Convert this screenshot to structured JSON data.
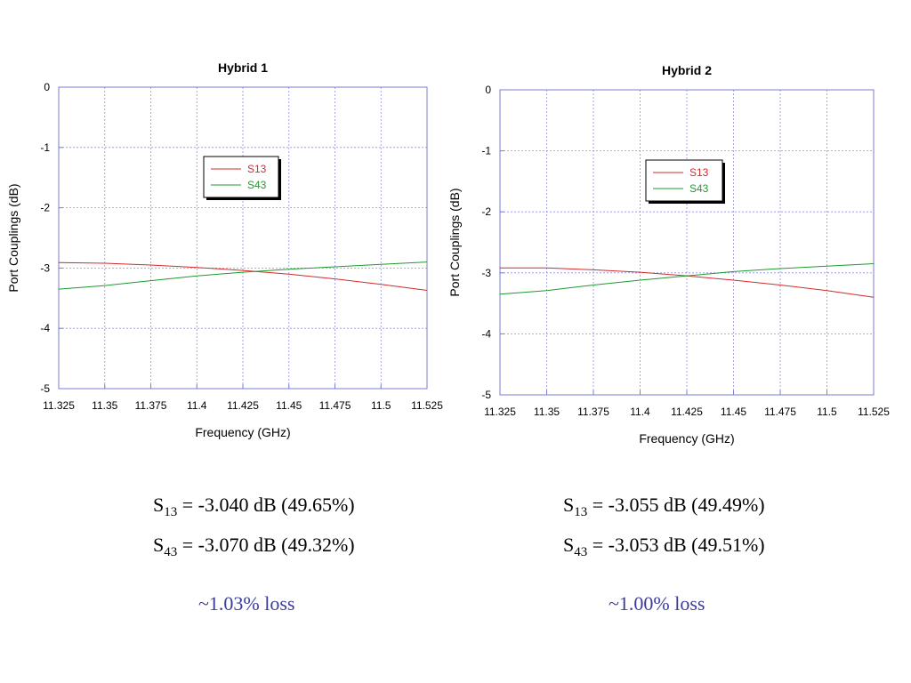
{
  "chart_data": [
    {
      "type": "line",
      "title": "Hybrid 1",
      "xlabel": "Frequency (GHz)",
      "ylabel": "Port Couplings (dB)",
      "xlim": [
        11.325,
        11.525
      ],
      "ylim": [
        -5,
        0
      ],
      "xticks": [
        "11.325",
        "11.35",
        "11.375",
        "11.4",
        "11.425",
        "11.45",
        "11.475",
        "11.5",
        "11.525"
      ],
      "yticks": [
        "0",
        "-1",
        "-2",
        "-3",
        "-4",
        "-5"
      ],
      "grid": true,
      "legend_position": "upper-center",
      "series": [
        {
          "name": "S13",
          "color": "#d22b2b",
          "x": [
            11.325,
            11.35,
            11.375,
            11.4,
            11.425,
            11.45,
            11.475,
            11.5,
            11.525
          ],
          "y": [
            -2.91,
            -2.92,
            -2.95,
            -2.99,
            -3.04,
            -3.1,
            -3.18,
            -3.27,
            -3.37
          ]
        },
        {
          "name": "S43",
          "color": "#1f9a2f",
          "x": [
            11.325,
            11.35,
            11.375,
            11.4,
            11.425,
            11.45,
            11.475,
            11.5,
            11.525
          ],
          "y": [
            -3.35,
            -3.29,
            -3.21,
            -3.13,
            -3.07,
            -3.02,
            -2.98,
            -2.94,
            -2.9
          ]
        }
      ]
    },
    {
      "type": "line",
      "title": "Hybrid 2",
      "xlabel": "Frequency (GHz)",
      "ylabel": "Port Couplings (dB)",
      "xlim": [
        11.325,
        11.525
      ],
      "ylim": [
        -5,
        0
      ],
      "xticks": [
        "11.325",
        "11.35",
        "11.375",
        "11.4",
        "11.425",
        "11.45",
        "11.475",
        "11.5",
        "11.525"
      ],
      "yticks": [
        "0",
        "-1",
        "-2",
        "-3",
        "-4",
        "-5"
      ],
      "grid": true,
      "legend_position": "upper-center",
      "series": [
        {
          "name": "S13",
          "color": "#d22b2b",
          "x": [
            11.325,
            11.35,
            11.375,
            11.4,
            11.425,
            11.45,
            11.475,
            11.5,
            11.525
          ],
          "y": [
            -2.92,
            -2.92,
            -2.95,
            -2.99,
            -3.05,
            -3.12,
            -3.2,
            -3.29,
            -3.4
          ]
        },
        {
          "name": "S43",
          "color": "#1f9a2f",
          "x": [
            11.325,
            11.35,
            11.375,
            11.4,
            11.425,
            11.45,
            11.475,
            11.5,
            11.525
          ],
          "y": [
            -3.35,
            -3.29,
            -3.2,
            -3.12,
            -3.05,
            -2.98,
            -2.93,
            -2.89,
            -2.85
          ]
        }
      ]
    }
  ],
  "results": {
    "h1": {
      "s13": {
        "sub": "13",
        "value": " = -3.040 dB (49.65%)"
      },
      "s43": {
        "sub": "43",
        "value": " = -3.070 dB (49.32%)"
      },
      "loss": "~1.03% loss"
    },
    "h2": {
      "s13": {
        "sub": "13",
        "value": " = -3.055 dB (49.49%)"
      },
      "s43": {
        "sub": "43",
        "value": " = -3.053 dB (49.51%)"
      },
      "loss": "~1.00% loss"
    },
    "symbol": "S"
  },
  "colors": {
    "grid": "#8f8fe8",
    "axis": "#7b7bd6",
    "loss_text": "#3b3b9b"
  }
}
